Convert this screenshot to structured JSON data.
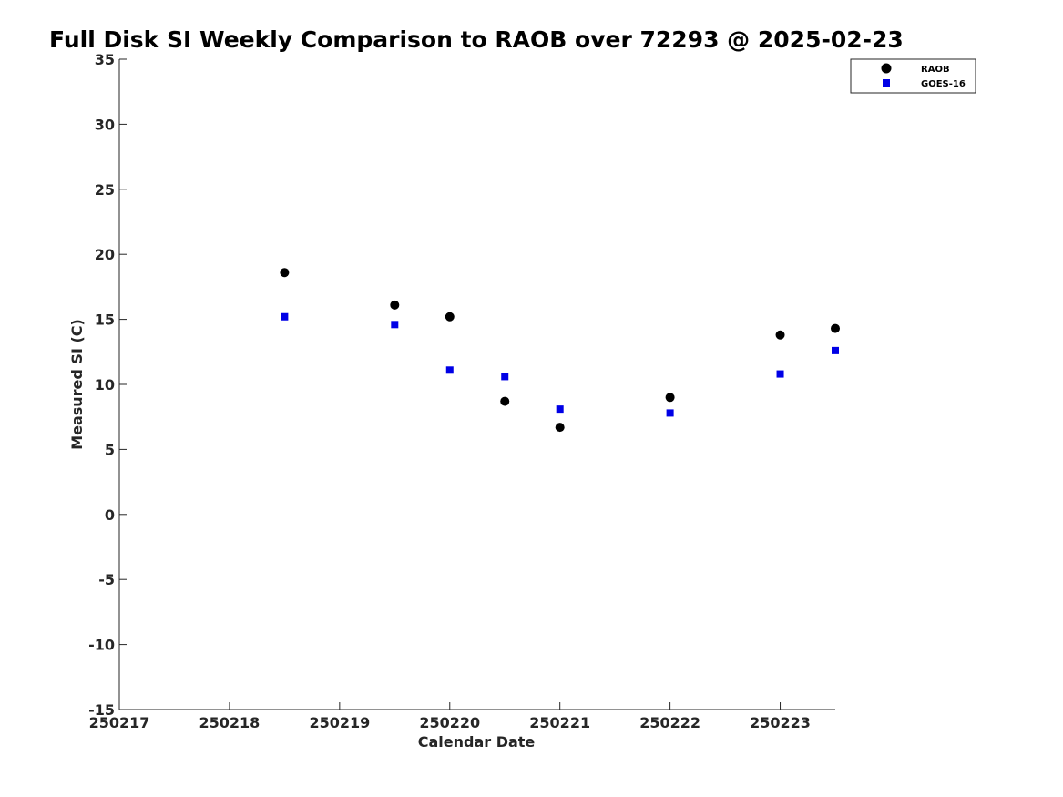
{
  "chart_data": {
    "type": "scatter",
    "title": "Full Disk SI Weekly Comparison to RAOB over 72293 @ 2025-02-23",
    "xlabel": "Calendar Date",
    "ylabel": "Measured SI (C)",
    "xlim": [
      "2025-02-17T00:00",
      "2025-02-23T12:00"
    ],
    "ylim": [
      -15,
      35
    ],
    "x_tick_values": [
      "2025-02-17",
      "2025-02-18",
      "2025-02-19",
      "2025-02-20",
      "2025-02-21",
      "2025-02-22",
      "2025-02-23"
    ],
    "x_tick_labels": [
      "250217",
      "250218",
      "250219",
      "250220",
      "250221",
      "250222",
      "250223"
    ],
    "y_ticks": [
      -15,
      -10,
      -5,
      0,
      5,
      10,
      15,
      20,
      25,
      30,
      35
    ],
    "grid": false,
    "legend_position": "top-right",
    "series": [
      {
        "name": "RAOB",
        "marker": "circle",
        "color": "#000000",
        "x": [
          "2025-02-18T12:00",
          "2025-02-19T12:00",
          "2025-02-20T00:00",
          "2025-02-20T12:00",
          "2025-02-21T00:00",
          "2025-02-22T00:00",
          "2025-02-23T00:00",
          "2025-02-23T12:00"
        ],
        "y": [
          18.6,
          16.1,
          15.2,
          8.7,
          6.7,
          9.0,
          13.8,
          14.3
        ]
      },
      {
        "name": "GOES-16",
        "marker": "square",
        "color": "#0000e6",
        "x": [
          "2025-02-18T12:00",
          "2025-02-19T12:00",
          "2025-02-20T00:00",
          "2025-02-20T12:00",
          "2025-02-21T00:00",
          "2025-02-22T00:00",
          "2025-02-23T00:00",
          "2025-02-23T12:00"
        ],
        "y": [
          15.2,
          14.6,
          11.1,
          10.6,
          8.1,
          7.8,
          10.8,
          12.6
        ]
      }
    ]
  }
}
